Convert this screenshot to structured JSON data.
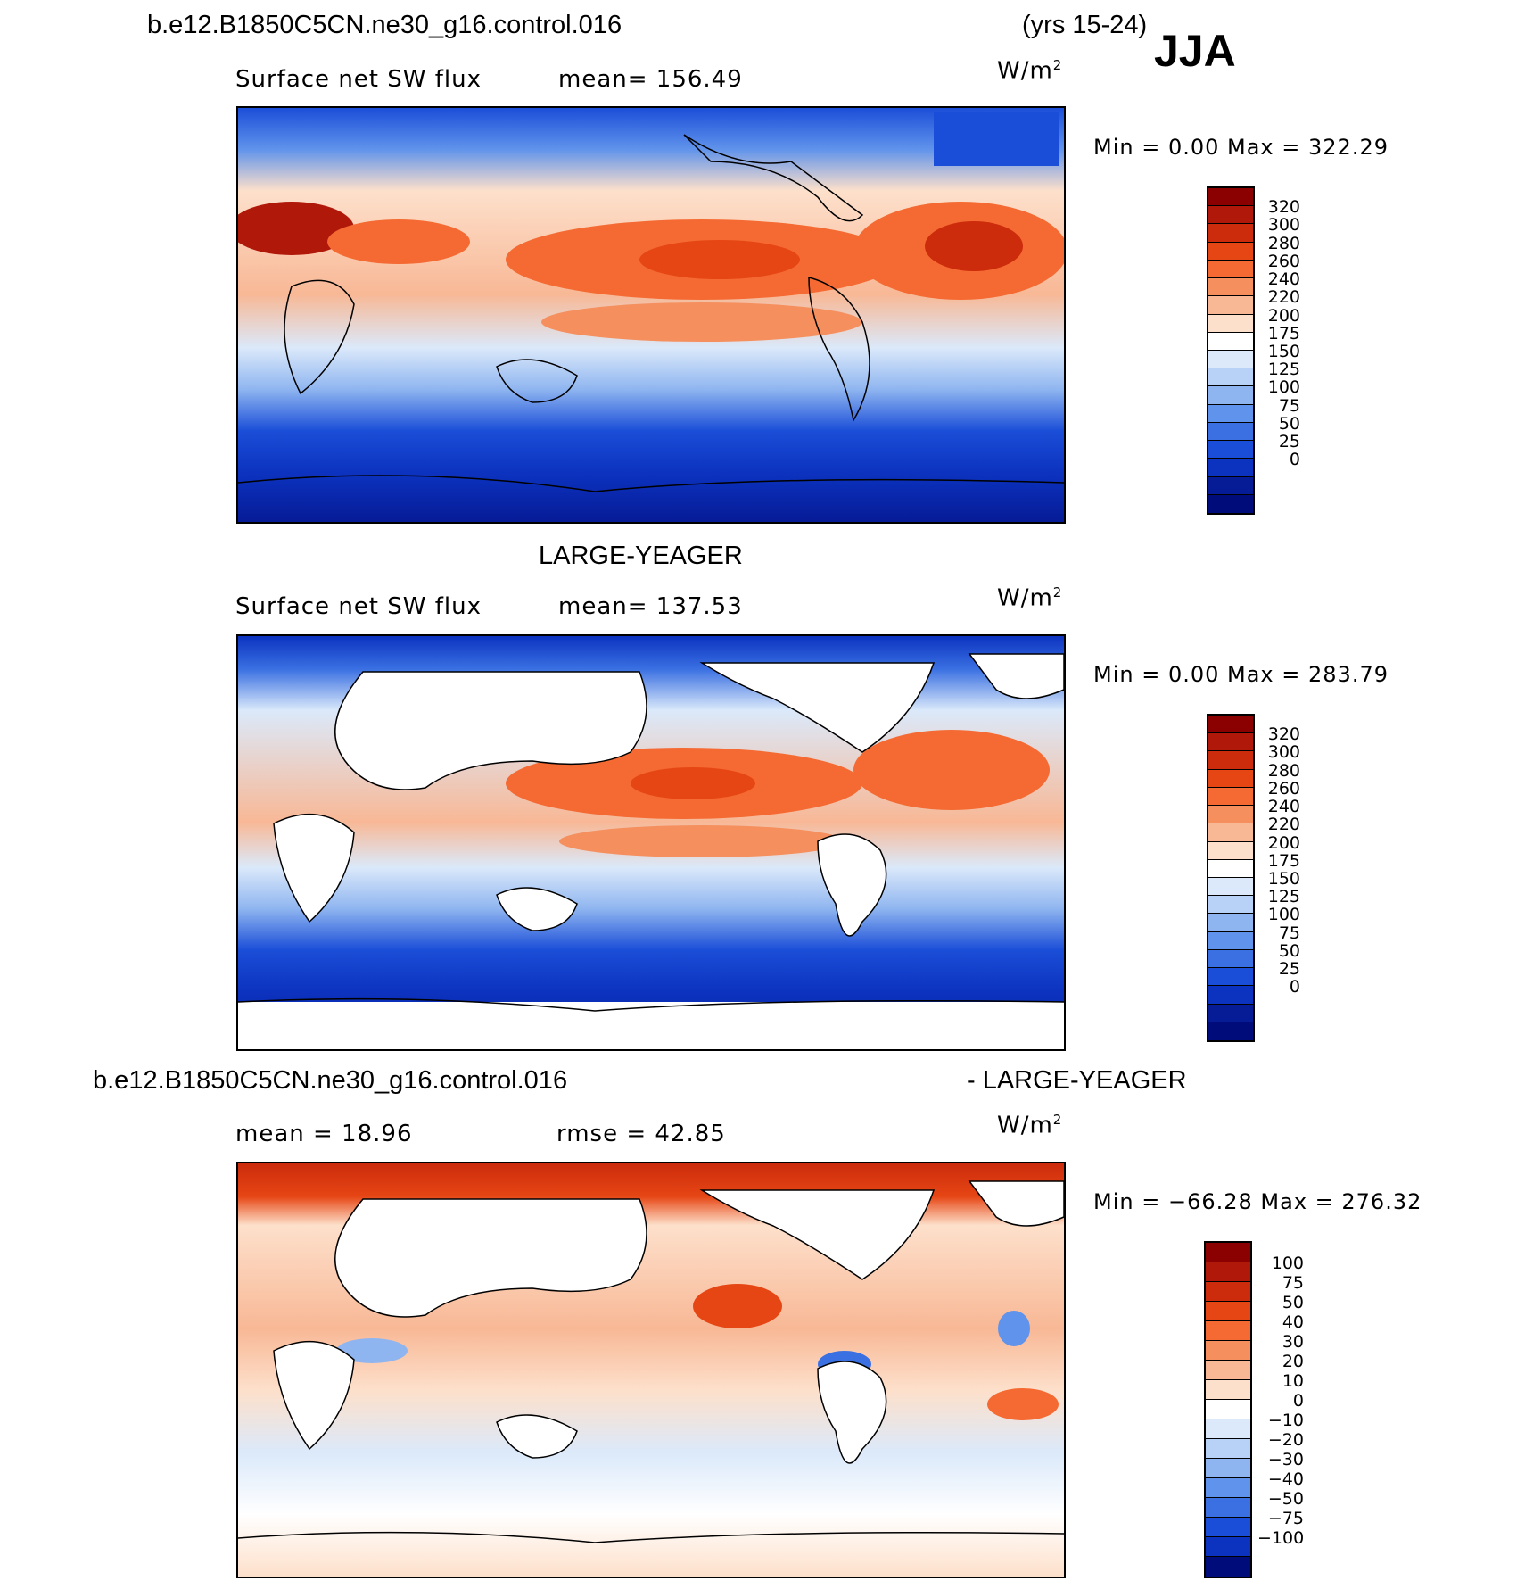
{
  "header": {
    "case_name": "b.e12.B1850C5CN.ne30_g16.control.016",
    "years": "(yrs 15-24)",
    "season": "JJA"
  },
  "panels": [
    {
      "title": "",
      "field": "Surface net SW flux",
      "stat": "mean=  156.49",
      "units_base": "W/m",
      "units_exp": "2",
      "minmax": "Min  =     0.00  Max  =  322.29",
      "colorbar": {
        "labels": [
          "320",
          "300",
          "280",
          "260",
          "240",
          "220",
          "200",
          "175",
          "150",
          "125",
          "100",
          "75",
          "50",
          "25",
          "0"
        ],
        "colors": [
          "#8b0000",
          "#b0180a",
          "#cc2b0c",
          "#e64614",
          "#f46a32",
          "#f58f5d",
          "#f8b896",
          "#fde0cb",
          "#ffffff",
          "#dbe9fa",
          "#b7d2f6",
          "#8fb5f0",
          "#6093eb",
          "#3a70e2",
          "#1b4ed8",
          "#0c33c0",
          "#061b96",
          "#000c7a"
        ]
      }
    },
    {
      "title": "LARGE-YEAGER",
      "field": "Surface net SW flux",
      "stat": "mean=  137.53",
      "units_base": "W/m",
      "units_exp": "2",
      "minmax": "Min  =     0.00  Max  =  283.79",
      "colorbar": {
        "labels": [
          "320",
          "300",
          "280",
          "260",
          "240",
          "220",
          "200",
          "175",
          "150",
          "125",
          "100",
          "75",
          "50",
          "25",
          "0"
        ],
        "colors": [
          "#8b0000",
          "#b0180a",
          "#cc2b0c",
          "#e64614",
          "#f46a32",
          "#f58f5d",
          "#f8b896",
          "#fde0cb",
          "#ffffff",
          "#dbe9fa",
          "#b7d2f6",
          "#8fb5f0",
          "#6093eb",
          "#3a70e2",
          "#1b4ed8",
          "#0c33c0",
          "#061b96",
          "#000c7a"
        ]
      }
    },
    {
      "title_left": "b.e12.B1850C5CN.ne30_g16.control.016",
      "title_right": "- LARGE-YEAGER",
      "field": "mean  =    18.96",
      "stat": "rmse  =    42.85",
      "units_base": "W/m",
      "units_exp": "2",
      "minmax": "Min  = −66.28  Max  =  276.32",
      "colorbar": {
        "labels": [
          "100",
          "75",
          "50",
          "40",
          "30",
          "20",
          "10",
          "0",
          "−10",
          "−20",
          "−30",
          "−40",
          "−50",
          "−75",
          "−100"
        ],
        "colors": [
          "#8b0000",
          "#b0180a",
          "#cc2b0c",
          "#e64614",
          "#f46a32",
          "#f58f5d",
          "#f8b896",
          "#fde0cb",
          "#ffffff",
          "#dbe9fa",
          "#b7d2f6",
          "#8fb5f0",
          "#6093eb",
          "#3a70e2",
          "#1b4ed8",
          "#0c33c0",
          "#000c7a"
        ]
      }
    }
  ]
}
